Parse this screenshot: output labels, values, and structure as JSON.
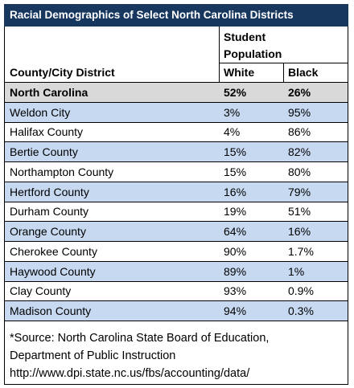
{
  "title": "Racial Demographics of Select North Carolina Districts",
  "table": {
    "header": {
      "group": "Student Population",
      "columns": [
        "County/City District",
        "White",
        "Black"
      ]
    },
    "rows": [
      [
        "North Carolina",
        "52%",
        "26%"
      ],
      [
        "Weldon City",
        "3%",
        "95%"
      ],
      [
        "Halifax County",
        "4%",
        "86%"
      ],
      [
        "Bertie County",
        "15%",
        "82%"
      ],
      [
        "Northampton County",
        "15%",
        "80%"
      ],
      [
        "Hertford County",
        "16%",
        "79%"
      ],
      [
        "Durham County",
        "19%",
        "51%"
      ],
      [
        "Orange County",
        "64%",
        "16%"
      ],
      [
        "Cherokee County",
        "90%",
        "1.7%"
      ],
      [
        "Haywood County",
        "89%",
        "1%"
      ],
      [
        "Clay County",
        "93%",
        "0.9%"
      ],
      [
        "Madison County",
        "94%",
        "0.3%"
      ]
    ]
  },
  "footer": {
    "lines": [
      "*Source: North Carolina State Board of Education,",
      "Department of Public Instruction",
      "http://www.dpi.state.nc.us/fbs/accounting/data/"
    ]
  }
}
